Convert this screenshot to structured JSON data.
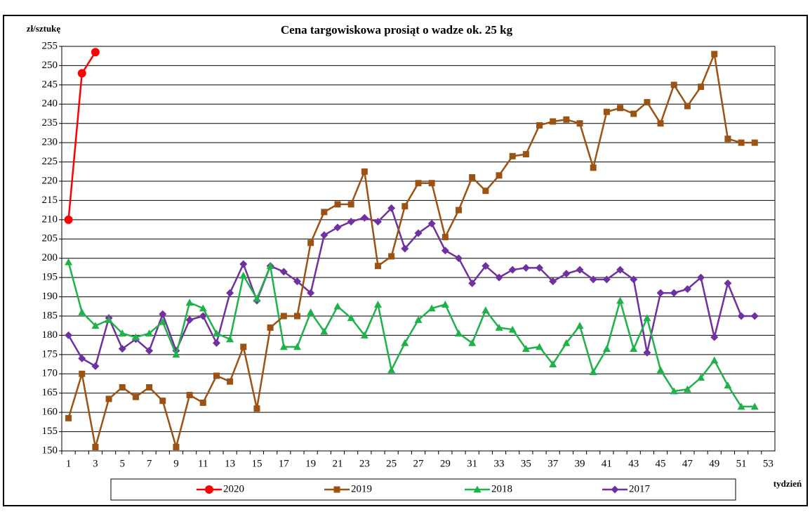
{
  "chart_data": {
    "type": "line",
    "title": "Cena targowiskowa prosiąt o wadze ok. 25 kg",
    "y_label": "zł/sztukę",
    "x_label": "tydzień",
    "categories": [
      1,
      null,
      3,
      null,
      5,
      null,
      7,
      null,
      9,
      null,
      11,
      null,
      13,
      null,
      15,
      null,
      17,
      null,
      19,
      null,
      21,
      null,
      23,
      null,
      25,
      null,
      27,
      null,
      29,
      null,
      31,
      null,
      33,
      null,
      35,
      null,
      37,
      null,
      39,
      null,
      41,
      null,
      43,
      null,
      45,
      null,
      47,
      null,
      49,
      null,
      51,
      null,
      53
    ],
    "ylim": [
      150,
      255
    ],
    "yticks": [
      150,
      155,
      160,
      165,
      170,
      175,
      180,
      185,
      190,
      195,
      200,
      205,
      210,
      215,
      220,
      225,
      230,
      235,
      240,
      245,
      250,
      255
    ],
    "grid": true,
    "series": [
      {
        "name": "2020",
        "color": "#ff0000",
        "marker": "circle",
        "values": [
          210,
          248,
          253.5,
          null,
          null,
          null,
          null,
          null,
          null,
          null,
          null,
          null,
          null,
          null,
          null,
          null,
          null,
          null,
          null,
          null,
          null,
          null,
          null,
          null,
          null,
          null,
          null,
          null,
          null,
          null,
          null,
          null,
          null,
          null,
          null,
          null,
          null,
          null,
          null,
          null,
          null,
          null,
          null,
          null,
          null,
          null,
          null,
          null,
          null,
          null,
          null,
          null,
          null
        ]
      },
      {
        "name": "2019",
        "color": "#9c5212",
        "marker": "square",
        "values": [
          158.5,
          170,
          151,
          163.5,
          166.5,
          164,
          166.5,
          163,
          151,
          164.5,
          162.5,
          169.5,
          168,
          177,
          161,
          182,
          185,
          185,
          204,
          212,
          214,
          214,
          222.5,
          198,
          200.5,
          213.5,
          219.5,
          219.5,
          205.5,
          212.5,
          221,
          217.5,
          221.5,
          226.5,
          227,
          234.5,
          235.5,
          236,
          235,
          223.5,
          238,
          239,
          237.5,
          240.5,
          235,
          245,
          239.5,
          244.5,
          253,
          231,
          230,
          230,
          null
        ]
      },
      {
        "name": "2018",
        "color": "#1fb24a",
        "marker": "triangle",
        "values": [
          199,
          186,
          182.5,
          184,
          180.5,
          179.5,
          180.5,
          183.5,
          175,
          188.5,
          187,
          180.5,
          179,
          195.5,
          189.5,
          198,
          177,
          177,
          186,
          181,
          187.5,
          184.5,
          180,
          188,
          171,
          178,
          184,
          187,
          188,
          180.5,
          178,
          186.5,
          182,
          181.5,
          176.5,
          177,
          172.5,
          178,
          182.5,
          170.5,
          176.5,
          189,
          176.5,
          184.5,
          171,
          165.5,
          166,
          169,
          173.5,
          167,
          161.5,
          161.5,
          null
        ]
      },
      {
        "name": "2017",
        "color": "#7030a0",
        "marker": "diamond",
        "values": [
          180,
          174,
          172,
          184.5,
          176.5,
          179,
          176,
          185.5,
          176,
          184,
          185,
          178,
          191,
          198.5,
          189,
          198,
          196.5,
          194,
          191,
          206,
          208,
          209.5,
          210.5,
          209.5,
          213,
          202.5,
          206.5,
          209,
          202,
          200,
          193.5,
          198,
          195,
          197,
          197.5,
          197.5,
          194,
          196,
          197,
          194.5,
          194.5,
          197,
          194.5,
          175.5,
          191,
          191,
          192,
          195,
          179.5,
          193.5,
          185,
          185,
          null
        ]
      }
    ]
  }
}
